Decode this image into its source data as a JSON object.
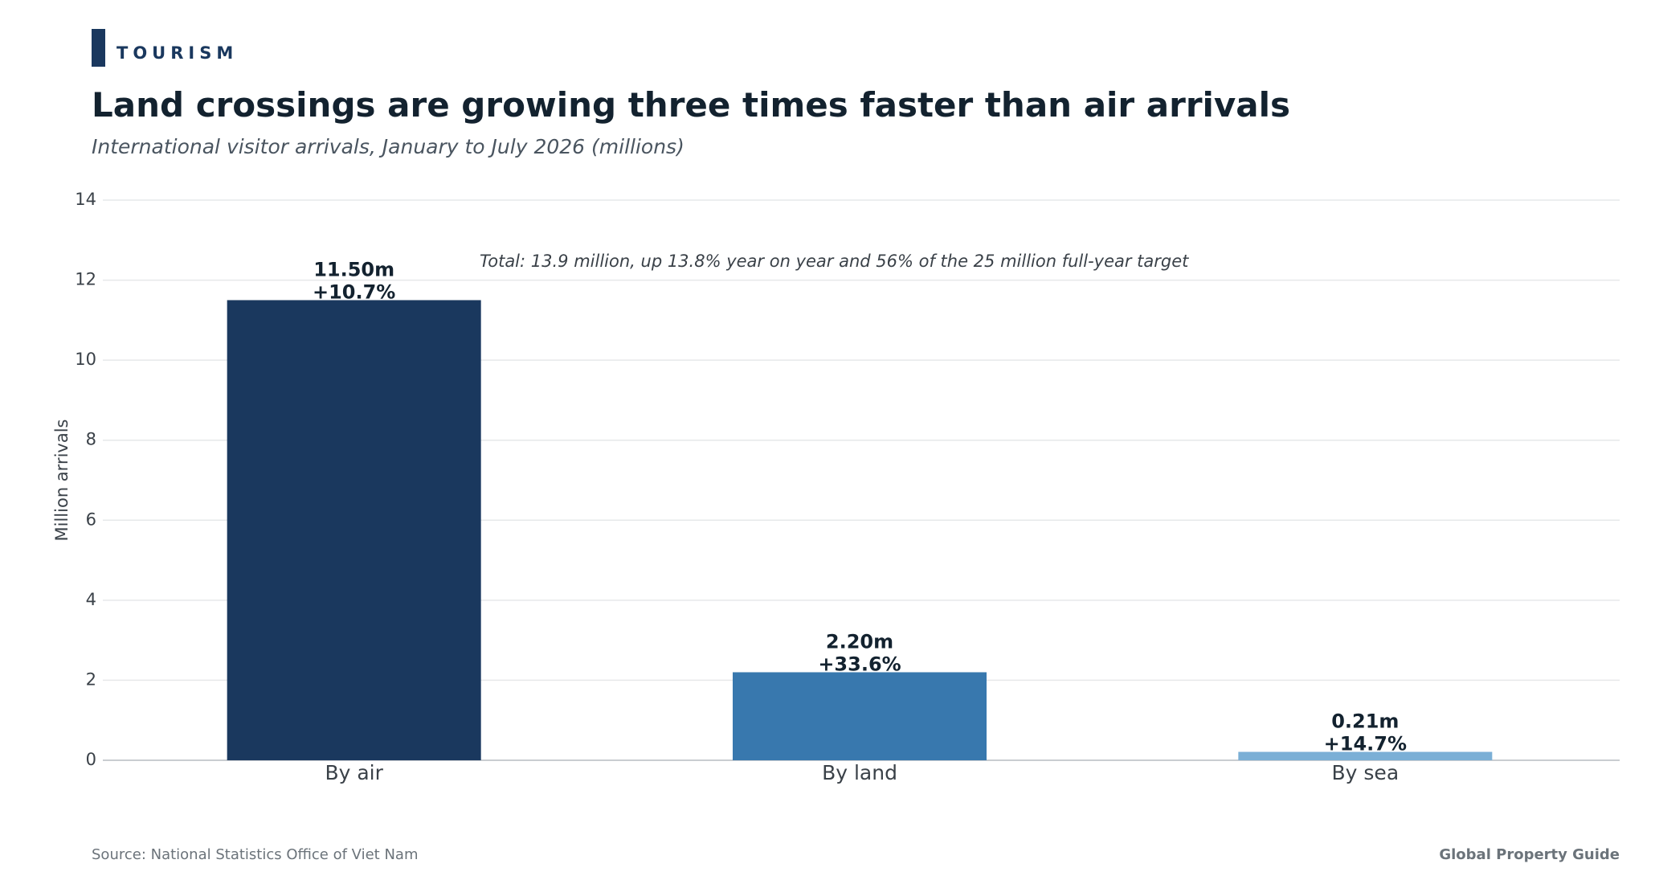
{
  "header": {
    "kicker": "TOURISM",
    "title": "Land crossings are growing three times faster than air arrivals",
    "subtitle": "International visitor arrivals, January to July 2026 (millions)"
  },
  "footer": {
    "source": "Source: National Statistics Office of Viet Nam",
    "brand": "Global Property Guide"
  },
  "chart_data": {
    "type": "bar",
    "categories": [
      "By air",
      "By land",
      "By sea"
    ],
    "values": [
      11.5,
      2.2,
      0.21
    ],
    "value_labels": [
      "11.50m",
      "2.20m",
      "0.21m"
    ],
    "growth_labels": [
      "+10.7%",
      "+33.6%",
      "+14.7%"
    ],
    "colors": [
      "#1a385e",
      "#3878ae",
      "#7bafd6"
    ],
    "ylabel": "Million arrivals",
    "ylim": [
      0,
      14
    ],
    "yticks": [
      0,
      2,
      4,
      6,
      8,
      10,
      12,
      14
    ],
    "grid": true,
    "annotation": "Total: 13.9 million, up 13.8% year on year and 56% of the 25 million full-year target"
  }
}
